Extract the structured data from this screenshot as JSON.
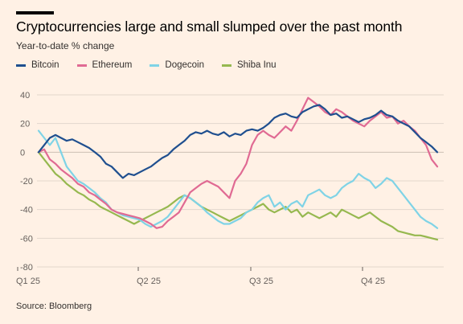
{
  "title": "Cryptocurrencies large and small slumped over the past month",
  "subtitle": "Year-to-date % change",
  "source": "Source: Bloomberg",
  "colors": {
    "background": "#fff1e5",
    "grid": "#e3d6cc",
    "Bitcoin": "#1f4f8f",
    "Ethereum": "#e06a93",
    "Dogecoin": "#7fd3e6",
    "Shiba Inu": "#96b84f"
  },
  "chart_data": {
    "type": "line",
    "title": "Cryptocurrencies large and small slumped over the past month",
    "ylabel": "Year-to-date % change",
    "xlabel": "",
    "x_tick_labels": [
      "Q1 25",
      "Q2 25",
      "Q3 25",
      "Q4 25"
    ],
    "y_ticks": [
      40,
      20,
      0,
      -20,
      -40,
      -60,
      -80
    ],
    "ylim": [
      -80,
      40
    ],
    "xlim": [
      0,
      355
    ],
    "grid": true,
    "legend": "top-left",
    "series": [
      {
        "name": "Bitcoin",
        "x": [
          0,
          5,
          10,
          15,
          20,
          25,
          30,
          35,
          40,
          45,
          50,
          55,
          60,
          65,
          70,
          75,
          80,
          85,
          90,
          95,
          100,
          105,
          110,
          115,
          120,
          125,
          130,
          135,
          140,
          145,
          150,
          155,
          160,
          165,
          170,
          175,
          180,
          185,
          190,
          195,
          200,
          205,
          210,
          215,
          220,
          225,
          230,
          235,
          240,
          245,
          250,
          255,
          260,
          265,
          270,
          275,
          280,
          285,
          290,
          295,
          300,
          305,
          310,
          315,
          320,
          325,
          330,
          335,
          340,
          345,
          350,
          355
        ],
        "values": [
          0,
          5,
          10,
          12,
          10,
          8,
          9,
          7,
          5,
          3,
          0,
          -3,
          -8,
          -10,
          -14,
          -18,
          -15,
          -16,
          -14,
          -12,
          -10,
          -7,
          -4,
          -2,
          2,
          5,
          8,
          12,
          14,
          13,
          15,
          13,
          12,
          14,
          11,
          13,
          12,
          15,
          16,
          15,
          17,
          20,
          24,
          26,
          27,
          25,
          24,
          28,
          30,
          32,
          33,
          30,
          26,
          27,
          24,
          25,
          23,
          21,
          23,
          24,
          26,
          29,
          26,
          25,
          22,
          20,
          18,
          14,
          10,
          7,
          4,
          0
        ]
      },
      {
        "name": "Ethereum",
        "x": [
          0,
          5,
          10,
          15,
          20,
          25,
          30,
          35,
          40,
          45,
          50,
          55,
          60,
          65,
          70,
          75,
          80,
          85,
          90,
          95,
          100,
          105,
          110,
          115,
          120,
          125,
          130,
          135,
          140,
          145,
          150,
          155,
          160,
          165,
          170,
          175,
          180,
          185,
          190,
          195,
          200,
          205,
          210,
          215,
          220,
          225,
          230,
          235,
          240,
          245,
          250,
          255,
          260,
          265,
          270,
          275,
          280,
          285,
          290,
          295,
          300,
          305,
          310,
          315,
          320,
          325,
          330,
          335,
          340,
          345,
          350,
          355
        ],
        "values": [
          0,
          2,
          -5,
          -8,
          -12,
          -15,
          -18,
          -22,
          -24,
          -28,
          -30,
          -33,
          -36,
          -40,
          -42,
          -43,
          -44,
          -45,
          -46,
          -48,
          -50,
          -53,
          -52,
          -48,
          -45,
          -42,
          -35,
          -28,
          -25,
          -22,
          -20,
          -22,
          -24,
          -28,
          -32,
          -20,
          -15,
          -8,
          5,
          12,
          15,
          12,
          10,
          14,
          18,
          15,
          22,
          30,
          38,
          35,
          32,
          28,
          26,
          30,
          28,
          25,
          22,
          20,
          18,
          22,
          25,
          28,
          24,
          25,
          20,
          22,
          18,
          15,
          10,
          5,
          -5,
          -10
        ]
      },
      {
        "name": "Dogecoin",
        "x": [
          0,
          5,
          10,
          15,
          20,
          25,
          30,
          35,
          40,
          45,
          50,
          55,
          60,
          65,
          70,
          75,
          80,
          85,
          90,
          95,
          100,
          105,
          110,
          115,
          120,
          125,
          130,
          135,
          140,
          145,
          150,
          155,
          160,
          165,
          170,
          175,
          180,
          185,
          190,
          195,
          200,
          205,
          210,
          215,
          220,
          225,
          230,
          235,
          240,
          245,
          250,
          255,
          260,
          265,
          270,
          275,
          280,
          285,
          290,
          295,
          300,
          305,
          310,
          315,
          320,
          325,
          330,
          335,
          340,
          345,
          350,
          355
        ],
        "values": [
          15,
          10,
          5,
          10,
          0,
          -10,
          -15,
          -20,
          -22,
          -25,
          -28,
          -32,
          -35,
          -40,
          -42,
          -44,
          -45,
          -46,
          -47,
          -50,
          -52,
          -50,
          -48,
          -45,
          -40,
          -35,
          -30,
          -32,
          -35,
          -38,
          -42,
          -45,
          -48,
          -50,
          -50,
          -48,
          -46,
          -42,
          -40,
          -35,
          -32,
          -30,
          -38,
          -35,
          -40,
          -36,
          -34,
          -38,
          -30,
          -28,
          -26,
          -30,
          -32,
          -30,
          -25,
          -22,
          -20,
          -15,
          -18,
          -20,
          -25,
          -22,
          -18,
          -20,
          -25,
          -30,
          -35,
          -40,
          -45,
          -48,
          -50,
          -53
        ]
      },
      {
        "name": "Shiba Inu",
        "x": [
          0,
          5,
          10,
          15,
          20,
          25,
          30,
          35,
          40,
          45,
          50,
          55,
          60,
          65,
          70,
          75,
          80,
          85,
          90,
          95,
          100,
          105,
          110,
          115,
          120,
          125,
          130,
          135,
          140,
          145,
          150,
          155,
          160,
          165,
          170,
          175,
          180,
          185,
          190,
          195,
          200,
          205,
          210,
          215,
          220,
          225,
          230,
          235,
          240,
          245,
          250,
          255,
          260,
          265,
          270,
          275,
          280,
          285,
          290,
          295,
          300,
          305,
          310,
          315,
          320,
          325,
          330,
          335,
          340,
          345,
          350,
          355
        ],
        "values": [
          0,
          -5,
          -10,
          -15,
          -18,
          -22,
          -25,
          -28,
          -30,
          -33,
          -35,
          -38,
          -40,
          -42,
          -44,
          -46,
          -48,
          -50,
          -48,
          -46,
          -44,
          -42,
          -40,
          -38,
          -35,
          -32,
          -30,
          -32,
          -35,
          -38,
          -40,
          -42,
          -44,
          -46,
          -48,
          -46,
          -44,
          -42,
          -40,
          -38,
          -36,
          -40,
          -42,
          -40,
          -38,
          -42,
          -40,
          -45,
          -42,
          -44,
          -46,
          -44,
          -42,
          -45,
          -40,
          -42,
          -44,
          -46,
          -44,
          -42,
          -45,
          -48,
          -50,
          -52,
          -55,
          -56,
          -57,
          -58,
          -58,
          -59,
          -60,
          -61
        ]
      }
    ]
  }
}
